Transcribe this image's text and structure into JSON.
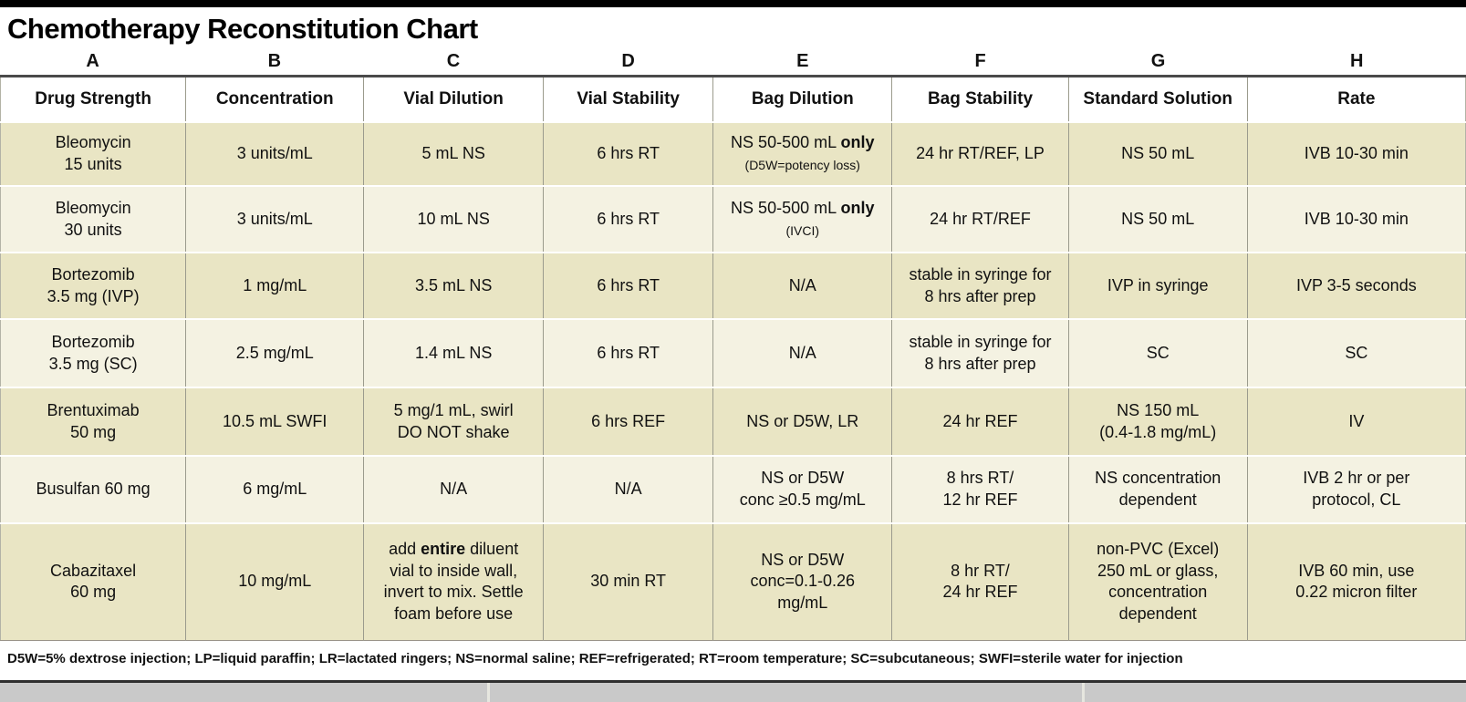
{
  "chart_data": {
    "type": "table",
    "title": "Chemotherapy Reconstitution Chart",
    "column_letters": [
      "A",
      "B",
      "C",
      "D",
      "E",
      "F",
      "G",
      "H"
    ],
    "columns": [
      "Drug Strength",
      "Concentration",
      "Vial Dilution",
      "Vial Stability",
      "Bag Dilution",
      "Bag Stability",
      "Standard Solution",
      "Rate"
    ],
    "rows": [
      [
        [
          "Bleomycin",
          "15 units"
        ],
        "3 units/mL",
        "5 mL NS",
        "6 hrs RT",
        [
          [
            {
              "t": "NS 50-500 mL "
            },
            {
              "t": "only",
              "b": true
            }
          ],
          [
            {
              "t": "(D5W=potency loss)",
              "s": true
            }
          ]
        ],
        "24 hr RT/REF, LP",
        "NS 50 mL",
        "IVB 10-30 min"
      ],
      [
        [
          "Bleomycin",
          "30 units"
        ],
        "3 units/mL",
        "10 mL NS",
        "6 hrs RT",
        [
          [
            {
              "t": "NS 50-500 mL "
            },
            {
              "t": "only",
              "b": true
            }
          ],
          [
            {
              "t": "(IVCI)",
              "s": true
            }
          ]
        ],
        "24 hr RT/REF",
        "NS 50 mL",
        "IVB 10-30 min"
      ],
      [
        [
          "Bortezomib",
          "3.5 mg (IVP)"
        ],
        "1 mg/mL",
        "3.5 mL NS",
        "6 hrs RT",
        "N/A",
        [
          "stable in syringe for",
          "8 hrs after prep"
        ],
        "IVP in syringe",
        "IVP 3-5 seconds"
      ],
      [
        [
          "Bortezomib",
          "3.5 mg (SC)"
        ],
        "2.5 mg/mL",
        "1.4 mL NS",
        "6 hrs RT",
        "N/A",
        [
          "stable in syringe for",
          "8 hrs after prep"
        ],
        "SC",
        "SC"
      ],
      [
        [
          "Brentuximab",
          "50 mg"
        ],
        "10.5 mL SWFI",
        [
          "5 mg/1 mL, swirl",
          "DO NOT shake"
        ],
        "6 hrs REF",
        "NS or D5W, LR",
        "24 hr REF",
        [
          "NS 150 mL",
          "(0.4-1.8 mg/mL)"
        ],
        "IV"
      ],
      [
        "Busulfan 60 mg",
        "6 mg/mL",
        "N/A",
        "N/A",
        [
          "NS or D5W",
          "conc ≥0.5 mg/mL"
        ],
        [
          "8 hrs RT/",
          "12 hr REF"
        ],
        [
          "NS concentration",
          "dependent"
        ],
        [
          "IVB 2 hr or per",
          "protocol, CL"
        ]
      ],
      [
        [
          "Cabazitaxel",
          "60 mg"
        ],
        "10 mg/mL",
        [
          [
            {
              "t": "add "
            },
            {
              "t": "entire",
              "b": true
            },
            {
              "t": " diluent"
            }
          ],
          "vial to inside wall,",
          "invert to mix. Settle",
          "foam before use"
        ],
        "30 min RT",
        [
          "NS or D5W",
          "conc=0.1-0.26",
          "mg/mL"
        ],
        [
          "8 hr RT/",
          "24 hr REF"
        ],
        [
          "non-PVC (Excel)",
          "250 mL or glass,",
          "concentration",
          "dependent"
        ],
        [
          "IVB 60 min, use",
          "0.22 micron filter"
        ]
      ]
    ],
    "footnote": "D5W=5% dextrose injection; LP=liquid paraffin; LR=lactated ringers; NS=normal saline; REF=refrigerated; RT=room temperature; SC=subcutaneous; SWFI=sterile water for injection"
  },
  "colors": {
    "row_dark": "#e9e5c4",
    "row_light": "#f4f2e2",
    "divider": "#9b9b8d",
    "top_bar": "#000000",
    "header_rule": "#4a4a4a",
    "bottom_strip": "#c9c9c9",
    "bottom_strip_divider": "#e6e6df"
  }
}
